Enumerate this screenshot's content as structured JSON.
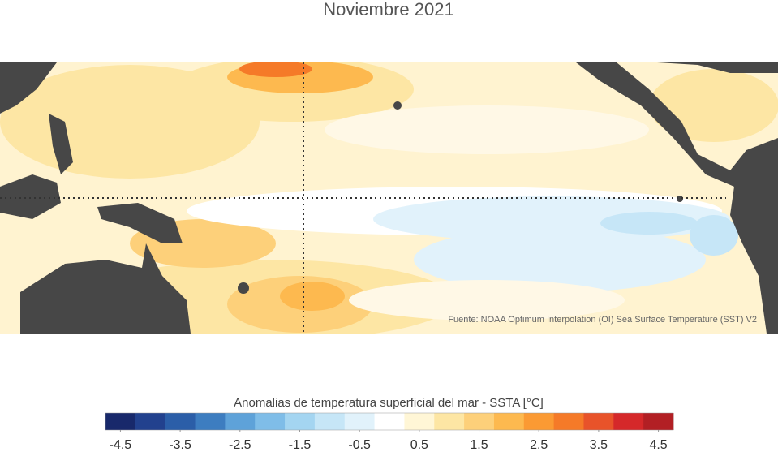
{
  "title": "Noviembre 2021",
  "source": "Fuente: NOAA Optimum Interpolation (OI) Sea Surface Temperature (SST) V2",
  "colorbar": {
    "label": "Anomalias de temperatura superficial del mar - SSTA  [°C]",
    "lim": [
      -4.75,
      4.75
    ],
    "ticks": [
      -4.5,
      -3.5,
      -2.5,
      -1.5,
      -0.5,
      0.5,
      1.5,
      2.5,
      3.5,
      4.5
    ],
    "colors": [
      "#18296b",
      "#22418e",
      "#2b5ea8",
      "#3d7dc0",
      "#5ea2d9",
      "#7fbde8",
      "#a4d5f1",
      "#c6e6f7",
      "#e1f2fb",
      "#ffffff",
      "#fff6d6",
      "#fde6a4",
      "#fdd07a",
      "#fdb94f",
      "#fb9a33",
      "#f57a28",
      "#e8532a",
      "#d5282a",
      "#b21f24"
    ]
  }
}
